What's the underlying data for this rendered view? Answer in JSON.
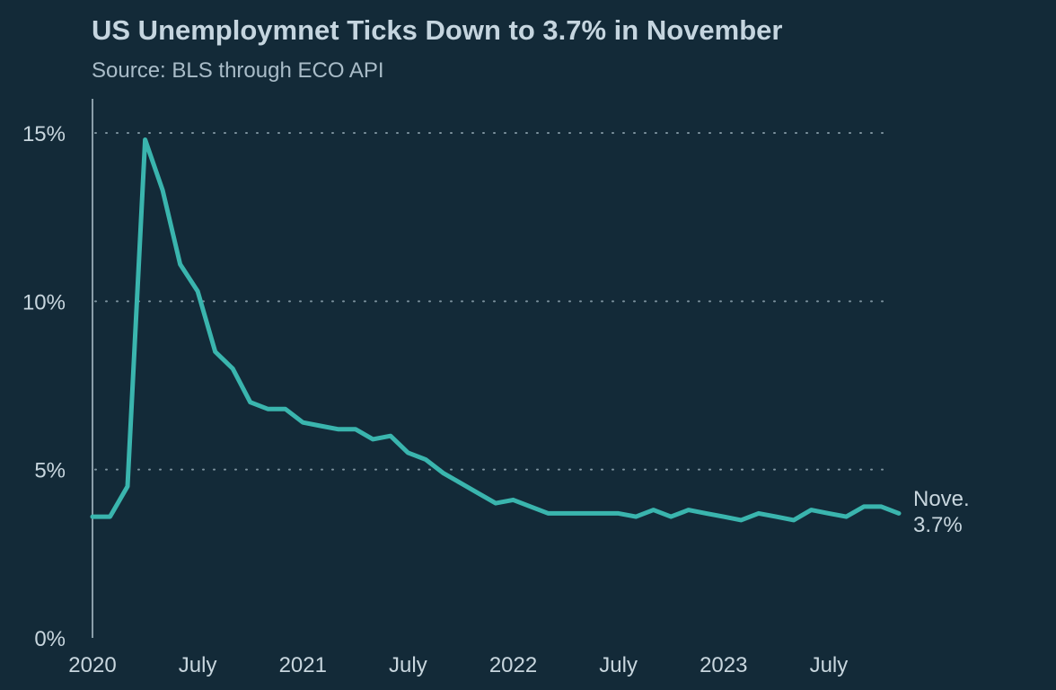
{
  "chart_data": {
    "type": "line",
    "title": "US Unemploymnet Ticks Down to 3.7% in November",
    "subtitle": "Source: BLS through ECO API",
    "xlabel": "",
    "ylabel": "",
    "y_ticks": [
      "0%",
      "5%",
      "10%",
      "15%"
    ],
    "y_tick_values": [
      0,
      5,
      10,
      15
    ],
    "ylim": [
      0,
      15
    ],
    "x_ticks": [
      "2020",
      "July",
      "2021",
      "July",
      "2022",
      "July",
      "2023",
      "July"
    ],
    "x_tick_values": [
      "2020-01",
      "2020-07",
      "2021-01",
      "2021-07",
      "2022-01",
      "2022-07",
      "2023-01",
      "2023-07"
    ],
    "xlim": [
      "2020-01",
      "2023-11"
    ],
    "grid": "horizontal dotted",
    "colors": {
      "background": "#132a38",
      "series": "#3ab5ae",
      "text": "#c8d6de"
    },
    "series": [
      {
        "x": [
          "2020-01",
          "2020-02",
          "2020-03",
          "2020-04",
          "2020-05",
          "2020-06",
          "2020-07",
          "2020-08",
          "2020-09",
          "2020-10",
          "2020-11",
          "2020-12",
          "2021-01",
          "2021-02",
          "2021-03",
          "2021-04",
          "2021-05",
          "2021-06",
          "2021-07",
          "2021-08",
          "2021-09",
          "2021-10",
          "2021-11",
          "2021-12",
          "2022-01",
          "2022-02",
          "2022-03",
          "2022-04",
          "2022-05",
          "2022-06",
          "2022-07",
          "2022-08",
          "2022-09",
          "2022-10",
          "2022-11",
          "2022-12",
          "2023-01",
          "2023-02",
          "2023-03",
          "2023-04",
          "2023-05",
          "2023-06",
          "2023-07",
          "2023-08",
          "2023-09",
          "2023-10",
          "2023-11"
        ],
        "values": [
          3.6,
          3.6,
          4.5,
          14.8,
          13.3,
          11.1,
          10.3,
          8.5,
          8.0,
          7.0,
          6.8,
          6.8,
          6.4,
          6.3,
          6.2,
          6.2,
          5.9,
          6.0,
          5.5,
          5.3,
          4.9,
          4.6,
          4.3,
          4.0,
          4.1,
          3.9,
          3.7,
          3.7,
          3.7,
          3.7,
          3.7,
          3.6,
          3.8,
          3.6,
          3.8,
          3.7,
          3.6,
          3.5,
          3.7,
          3.6,
          3.5,
          3.8,
          3.7,
          3.6,
          3.9,
          3.9,
          3.7
        ]
      }
    ],
    "annotation": {
      "line1": "Nove.",
      "line2": "3.7%"
    }
  }
}
